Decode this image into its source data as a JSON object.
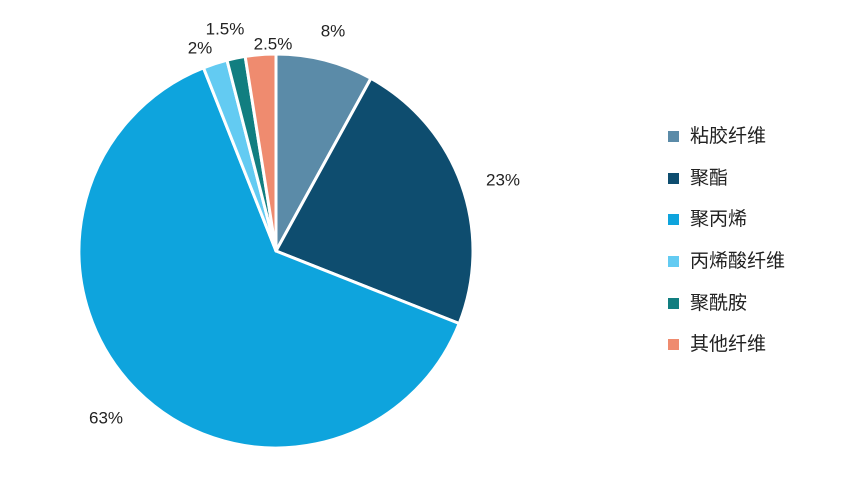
{
  "chart_data": {
    "type": "pie",
    "title": "",
    "legend_position": "right",
    "slices": [
      {
        "label": "粘胶纤维",
        "value": 8,
        "value_label": "8%",
        "color": "#5b8ba8"
      },
      {
        "label": "聚酯",
        "value": 23,
        "value_label": "23%",
        "color": "#0e4d6f"
      },
      {
        "label": "聚丙烯",
        "value": 63,
        "value_label": "63%",
        "color": "#0ea4dd"
      },
      {
        "label": "丙烯酸纤维",
        "value": 2,
        "value_label": "2%",
        "color": "#63cbf2"
      },
      {
        "label": "聚酰胺",
        "value": 1.5,
        "value_label": "1.5%",
        "color": "#117e80"
      },
      {
        "label": "其他纤维",
        "value": 2.5,
        "value_label": "2.5%",
        "color": "#ef8b6f"
      }
    ]
  }
}
